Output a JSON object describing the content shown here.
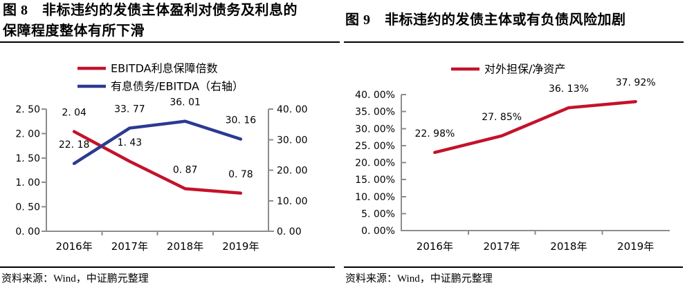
{
  "figures": [
    {
      "figure_label": "图 8",
      "title_lines": [
        "图 8　非标违约的发债主体盈利对债务及利息的",
        "保障程度整体有所下滑"
      ],
      "source": "资料来源：Wind，中证鹏元整理"
    },
    {
      "figure_label": "图 9",
      "title_lines": [
        "图 9　非标违约的发债主体或有负债风险加剧"
      ],
      "source": "资料来源：Wind，中证鹏元整理"
    }
  ],
  "chart_data": [
    {
      "type": "line",
      "title": "非标违约的发债主体盈利对债务及利息的保障程度整体有所下滑",
      "categories": [
        "2016年",
        "2017年",
        "2018年",
        "2019年"
      ],
      "series": [
        {
          "name": "EBITDA利息保障倍数",
          "axis": "left",
          "color": "#c4122a",
          "values": [
            2.04,
            1.43,
            0.87,
            0.78
          ],
          "point_labels": [
            "2. 04",
            "1. 43",
            "0. 87",
            "0. 78"
          ]
        },
        {
          "name": "有息债务/EBITDA（右轴）",
          "axis": "right",
          "color": "#2b3a92",
          "values": [
            22.18,
            33.77,
            36.01,
            30.16
          ],
          "point_labels": [
            "22. 18",
            "33. 77",
            "36. 01",
            "30. 16"
          ]
        }
      ],
      "left_axis": {
        "min": 0,
        "max": 2.5,
        "step": 0.5,
        "tick_labels": [
          "0. 00",
          "0. 50",
          "1. 00",
          "1. 50",
          "2. 00",
          "2. 50"
        ]
      },
      "right_axis": {
        "min": 0,
        "max": 40,
        "step": 10,
        "tick_labels": [
          "0. 00",
          "10. 00",
          "20. 00",
          "30. 00",
          "40. 00"
        ]
      },
      "legend_position": "top",
      "grid": false
    },
    {
      "type": "line",
      "title": "非标违约的发债主体或有负债风险加剧",
      "categories": [
        "2016年",
        "2017年",
        "2018年",
        "2019年"
      ],
      "series": [
        {
          "name": "对外担保/净资产",
          "axis": "left",
          "color": "#c4122a",
          "values": [
            22.98,
            27.85,
            36.13,
            37.92
          ],
          "point_labels": [
            "22. 98%",
            "27. 85%",
            "36. 13%",
            "37. 92%"
          ]
        }
      ],
      "left_axis": {
        "min": 0,
        "max": 40,
        "step": 5,
        "tick_labels": [
          "0. 00%",
          "5. 00%",
          "10. 00%",
          "15. 00%",
          "20. 00%",
          "25. 00%",
          "30. 00%",
          "35. 00%",
          "40. 00%"
        ]
      },
      "legend_position": "top",
      "grid": false
    }
  ],
  "colors": {
    "series_red": "#c4122a",
    "series_blue": "#2b3a92",
    "axis_gray": "#8c8c8c",
    "rule_black": "#000000",
    "text_black": "#000000"
  }
}
